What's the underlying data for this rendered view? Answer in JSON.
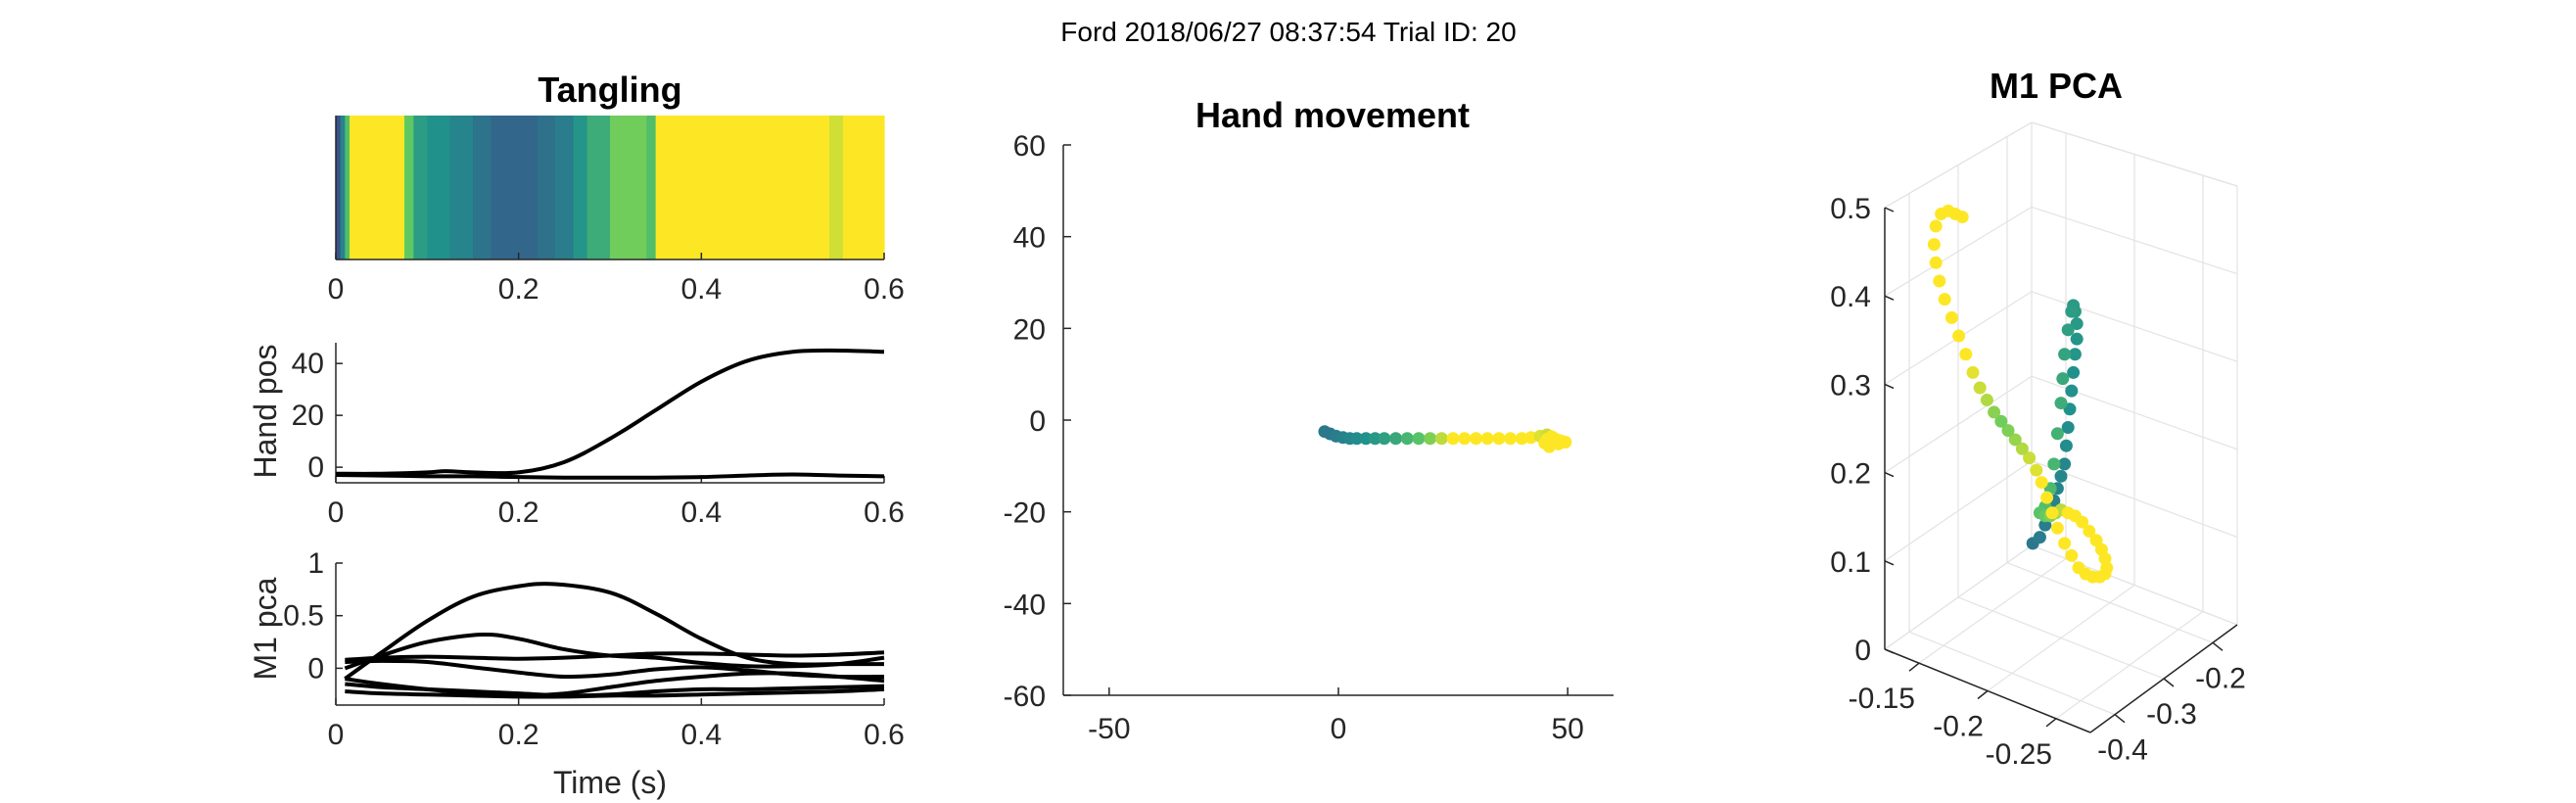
{
  "figure": {
    "suptitle": "Ford 2018/06/27 08:37:54 Trial ID: 20"
  },
  "colors": {
    "traces": "#000000",
    "viridis": [
      "#440154",
      "#3b528b",
      "#21918c",
      "#5ec962",
      "#fde725"
    ]
  },
  "chart_data": [
    {
      "type": "heatmap",
      "id": "tangling",
      "title": "Tangling",
      "xlim": [
        0,
        0.6
      ],
      "xticks": [
        "0",
        "0.2",
        "0.4",
        "0.6"
      ],
      "segments": [
        {
          "x0": 0.0,
          "x1": 0.005,
          "c": 0.25
        },
        {
          "x0": 0.005,
          "x1": 0.01,
          "c": 0.45
        },
        {
          "x0": 0.01,
          "x1": 0.015,
          "c": 0.7
        },
        {
          "x0": 0.015,
          "x1": 0.075,
          "c": 1.0
        },
        {
          "x0": 0.075,
          "x1": 0.085,
          "c": 0.75
        },
        {
          "x0": 0.085,
          "x1": 0.1,
          "c": 0.55
        },
        {
          "x0": 0.1,
          "x1": 0.125,
          "c": 0.5
        },
        {
          "x0": 0.125,
          "x1": 0.15,
          "c": 0.45
        },
        {
          "x0": 0.15,
          "x1": 0.17,
          "c": 0.38
        },
        {
          "x0": 0.17,
          "x1": 0.22,
          "c": 0.33
        },
        {
          "x0": 0.22,
          "x1": 0.24,
          "c": 0.37
        },
        {
          "x0": 0.24,
          "x1": 0.26,
          "c": 0.42
        },
        {
          "x0": 0.26,
          "x1": 0.275,
          "c": 0.52
        },
        {
          "x0": 0.275,
          "x1": 0.3,
          "c": 0.62
        },
        {
          "x0": 0.3,
          "x1": 0.34,
          "c": 0.78
        },
        {
          "x0": 0.34,
          "x1": 0.35,
          "c": 0.7
        },
        {
          "x0": 0.35,
          "x1": 0.54,
          "c": 1.0
        },
        {
          "x0": 0.54,
          "x1": 0.555,
          "c": 0.93
        },
        {
          "x0": 0.555,
          "x1": 0.6,
          "c": 1.0
        }
      ]
    },
    {
      "type": "line",
      "id": "hand-pos",
      "ylabel": "Hand pos",
      "xlim": [
        0,
        0.6
      ],
      "ylim": [
        -6,
        48
      ],
      "xticks": [
        "0",
        "0.2",
        "0.4",
        "0.6"
      ],
      "yticks": [
        "0",
        "20",
        "40"
      ],
      "series": [
        {
          "x": [
            0,
            0.05,
            0.1,
            0.12,
            0.15,
            0.2,
            0.25,
            0.3,
            0.35,
            0.4,
            0.45,
            0.5,
            0.55,
            0.6
          ],
          "y": [
            -2.5,
            -2.5,
            -2,
            -1.5,
            -2,
            -2,
            2,
            11,
            22,
            33,
            41,
            44.5,
            45,
            44.5
          ]
        },
        {
          "x": [
            0,
            0.05,
            0.1,
            0.15,
            0.2,
            0.25,
            0.3,
            0.35,
            0.4,
            0.45,
            0.5,
            0.55,
            0.6
          ],
          "y": [
            -3,
            -3.2,
            -3.5,
            -3.5,
            -3.8,
            -4,
            -4,
            -4,
            -3.8,
            -3.2,
            -2.8,
            -3.2,
            -3.5
          ]
        }
      ]
    },
    {
      "type": "line",
      "id": "m1-pca",
      "ylabel": "M1 pca",
      "xlabel": "Time (s)",
      "xlim": [
        0,
        0.6
      ],
      "ylim": [
        -0.35,
        1
      ],
      "xticks": [
        "0",
        "0.2",
        "0.4",
        "0.6"
      ],
      "yticks": [
        "0",
        "0.5",
        "1"
      ],
      "series": [
        {
          "x": [
            0.01,
            0.05,
            0.1,
            0.15,
            0.2,
            0.24,
            0.3,
            0.35,
            0.4,
            0.45,
            0.5,
            0.55,
            0.6
          ],
          "y": [
            -0.1,
            0.15,
            0.45,
            0.68,
            0.78,
            0.8,
            0.72,
            0.52,
            0.28,
            0.1,
            0.04,
            0.04,
            0.04
          ]
        },
        {
          "x": [
            0.01,
            0.05,
            0.1,
            0.16,
            0.2,
            0.25,
            0.3,
            0.35,
            0.4,
            0.45,
            0.5,
            0.55,
            0.6
          ],
          "y": [
            0.0,
            0.12,
            0.25,
            0.32,
            0.28,
            0.18,
            0.12,
            0.1,
            0.05,
            0.02,
            0.02,
            0.04,
            0.1
          ]
        },
        {
          "x": [
            0.01,
            0.05,
            0.1,
            0.15,
            0.2,
            0.25,
            0.3,
            0.35,
            0.4,
            0.45,
            0.5,
            0.55,
            0.6
          ],
          "y": [
            0.08,
            0.1,
            0.11,
            0.1,
            0.09,
            0.1,
            0.12,
            0.14,
            0.14,
            0.13,
            0.12,
            0.13,
            0.15
          ]
        },
        {
          "x": [
            0.01,
            0.05,
            0.1,
            0.15,
            0.2,
            0.25,
            0.3,
            0.35,
            0.4,
            0.45,
            0.5,
            0.55,
            0.6
          ],
          "y": [
            0.06,
            0.07,
            0.06,
            0.01,
            -0.04,
            -0.08,
            -0.06,
            -0.01,
            0.01,
            -0.02,
            -0.06,
            -0.08,
            -0.08
          ]
        },
        {
          "x": [
            0.01,
            0.05,
            0.1,
            0.15,
            0.2,
            0.25,
            0.3,
            0.35,
            0.4,
            0.45,
            0.5,
            0.55,
            0.6
          ],
          "y": [
            -0.1,
            -0.15,
            -0.2,
            -0.24,
            -0.26,
            -0.24,
            -0.18,
            -0.12,
            -0.08,
            -0.05,
            -0.05,
            -0.08,
            -0.12
          ]
        },
        {
          "x": [
            0.01,
            0.05,
            0.1,
            0.15,
            0.2,
            0.25,
            0.3,
            0.35,
            0.4,
            0.45,
            0.5,
            0.55,
            0.6
          ],
          "y": [
            -0.15,
            -0.18,
            -0.2,
            -0.22,
            -0.24,
            -0.26,
            -0.25,
            -0.22,
            -0.2,
            -0.2,
            -0.19,
            -0.18,
            -0.17
          ]
        },
        {
          "x": [
            0.01,
            0.05,
            0.1,
            0.15,
            0.2,
            0.25,
            0.3,
            0.35,
            0.4,
            0.45,
            0.5,
            0.55,
            0.6
          ],
          "y": [
            -0.22,
            -0.24,
            -0.25,
            -0.26,
            -0.27,
            -0.27,
            -0.26,
            -0.26,
            -0.25,
            -0.24,
            -0.23,
            -0.22,
            -0.2
          ]
        }
      ]
    },
    {
      "type": "scatter",
      "id": "hand-movement",
      "title": "Hand movement",
      "xlim": [
        -60,
        60
      ],
      "ylim": [
        -60,
        60
      ],
      "xticks": [
        "-50",
        "0",
        "50"
      ],
      "yticks": [
        "60",
        "40",
        "20",
        "0",
        "-20",
        "-40",
        "-60"
      ],
      "points": [
        {
          "x": -3.0,
          "y": -2.5,
          "c": 0.4
        },
        {
          "x": -1.8,
          "y": -3.0,
          "c": 0.4
        },
        {
          "x": -0.5,
          "y": -3.5,
          "c": 0.42
        },
        {
          "x": 1.0,
          "y": -3.8,
          "c": 0.44
        },
        {
          "x": 2.5,
          "y": -4.0,
          "c": 0.46
        },
        {
          "x": 4.0,
          "y": -4.0,
          "c": 0.48
        },
        {
          "x": 6.0,
          "y": -4.0,
          "c": 0.5
        },
        {
          "x": 8.0,
          "y": -4.0,
          "c": 0.53
        },
        {
          "x": 10.0,
          "y": -4.0,
          "c": 0.56
        },
        {
          "x": 12.5,
          "y": -4.0,
          "c": 0.6
        },
        {
          "x": 15.0,
          "y": -4.0,
          "c": 0.66
        },
        {
          "x": 17.5,
          "y": -4.0,
          "c": 0.72
        },
        {
          "x": 20.0,
          "y": -4.0,
          "c": 0.8
        },
        {
          "x": 22.5,
          "y": -4.0,
          "c": 0.9
        },
        {
          "x": 25.0,
          "y": -4.0,
          "c": 1.0
        },
        {
          "x": 27.5,
          "y": -4.0,
          "c": 1.0
        },
        {
          "x": 30.0,
          "y": -4.0,
          "c": 1.0
        },
        {
          "x": 32.5,
          "y": -4.0,
          "c": 1.0
        },
        {
          "x": 35.0,
          "y": -4.0,
          "c": 1.0
        },
        {
          "x": 37.5,
          "y": -4.0,
          "c": 1.0
        },
        {
          "x": 40.0,
          "y": -4.0,
          "c": 1.0
        },
        {
          "x": 42.0,
          "y": -3.8,
          "c": 1.0
        },
        {
          "x": 44.0,
          "y": -3.5,
          "c": 0.95
        },
        {
          "x": 45.5,
          "y": -3.2,
          "c": 0.92
        },
        {
          "x": 46.5,
          "y": -3.6,
          "c": 1.0
        },
        {
          "x": 47.5,
          "y": -4.2,
          "c": 1.0
        },
        {
          "x": 48.5,
          "y": -4.5,
          "c": 1.0
        },
        {
          "x": 49.5,
          "y": -4.8,
          "c": 1.0
        },
        {
          "x": 48.0,
          "y": -5.2,
          "c": 1.0
        },
        {
          "x": 46.0,
          "y": -5.5,
          "c": 1.0
        },
        {
          "x": 45.0,
          "y": -5.0,
          "c": 1.0
        },
        {
          "x": 45.5,
          "y": -4.2,
          "c": 1.0
        },
        {
          "x": 46.0,
          "y": -5.8,
          "c": 1.0
        }
      ]
    },
    {
      "type": "scatter",
      "id": "m1-pca-3d",
      "title": "M1 PCA",
      "zlim": [
        0,
        0.5
      ],
      "zticks": [
        "0.5",
        "0.4",
        "0.3",
        "0.2",
        "0.1",
        "0"
      ],
      "xticks": [
        "-0.2",
        "-0.3",
        "-0.4"
      ],
      "yticks": [
        "-0.15",
        "-0.2",
        "-0.25"
      ],
      "points": [
        {
          "u": 0.42,
          "v": 0.31,
          "c": 0.4
        },
        {
          "u": 0.44,
          "v": 0.32,
          "c": 0.42
        },
        {
          "u": 0.455,
          "v": 0.34,
          "c": 0.42
        },
        {
          "u": 0.47,
          "v": 0.36,
          "c": 0.43
        },
        {
          "u": 0.48,
          "v": 0.38,
          "c": 0.44
        },
        {
          "u": 0.49,
          "v": 0.4,
          "c": 0.45
        },
        {
          "u": 0.5,
          "v": 0.42,
          "c": 0.46
        },
        {
          "u": 0.51,
          "v": 0.44,
          "c": 0.46
        },
        {
          "u": 0.515,
          "v": 0.47,
          "c": 0.48
        },
        {
          "u": 0.52,
          "v": 0.5,
          "c": 0.48
        },
        {
          "u": 0.525,
          "v": 0.53,
          "c": 0.5
        },
        {
          "u": 0.53,
          "v": 0.56,
          "c": 0.5
        },
        {
          "u": 0.535,
          "v": 0.59,
          "c": 0.5
        },
        {
          "u": 0.54,
          "v": 0.62,
          "c": 0.52
        },
        {
          "u": 0.545,
          "v": 0.645,
          "c": 0.52
        },
        {
          "u": 0.545,
          "v": 0.67,
          "c": 0.53
        },
        {
          "u": 0.54,
          "v": 0.69,
          "c": 0.54
        },
        {
          "u": 0.535,
          "v": 0.7,
          "c": 0.54
        },
        {
          "u": 0.53,
          "v": 0.69,
          "c": 0.55
        },
        {
          "u": 0.52,
          "v": 0.66,
          "c": 0.56
        },
        {
          "u": 0.51,
          "v": 0.62,
          "c": 0.58
        },
        {
          "u": 0.505,
          "v": 0.58,
          "c": 0.6
        },
        {
          "u": 0.5,
          "v": 0.54,
          "c": 0.62
        },
        {
          "u": 0.49,
          "v": 0.49,
          "c": 0.64
        },
        {
          "u": 0.48,
          "v": 0.44,
          "c": 0.66
        },
        {
          "u": 0.47,
          "v": 0.4,
          "c": 0.68
        },
        {
          "u": 0.455,
          "v": 0.37,
          "c": 0.7
        },
        {
          "u": 0.44,
          "v": 0.36,
          "c": 0.72
        },
        {
          "u": 0.455,
          "v": 0.355,
          "c": 0.76
        },
        {
          "u": 0.47,
          "v": 0.355,
          "c": 0.8
        },
        {
          "u": 0.485,
          "v": 0.36,
          "c": 0.85
        },
        {
          "u": 0.5,
          "v": 0.365,
          "c": 0.9
        },
        {
          "u": 0.52,
          "v": 0.36,
          "c": 1.0
        },
        {
          "u": 0.54,
          "v": 0.355,
          "c": 1.0
        },
        {
          "u": 0.56,
          "v": 0.345,
          "c": 1.0
        },
        {
          "u": 0.58,
          "v": 0.33,
          "c": 1.0
        },
        {
          "u": 0.6,
          "v": 0.315,
          "c": 1.0
        },
        {
          "u": 0.615,
          "v": 0.3,
          "c": 1.0
        },
        {
          "u": 0.625,
          "v": 0.285,
          "c": 1.0
        },
        {
          "u": 0.63,
          "v": 0.27,
          "c": 1.0
        },
        {
          "u": 0.625,
          "v": 0.26,
          "c": 1.0
        },
        {
          "u": 0.61,
          "v": 0.255,
          "c": 1.0
        },
        {
          "u": 0.59,
          "v": 0.255,
          "c": 1.0
        },
        {
          "u": 0.57,
          "v": 0.26,
          "c": 1.0
        },
        {
          "u": 0.55,
          "v": 0.27,
          "c": 1.0
        },
        {
          "u": 0.53,
          "v": 0.29,
          "c": 1.0
        },
        {
          "u": 0.51,
          "v": 0.31,
          "c": 1.0
        },
        {
          "u": 0.49,
          "v": 0.335,
          "c": 1.0
        },
        {
          "u": 0.475,
          "v": 0.36,
          "c": 1.0
        },
        {
          "u": 0.46,
          "v": 0.385,
          "c": 1.0
        },
        {
          "u": 0.445,
          "v": 0.41,
          "c": 1.0
        },
        {
          "u": 0.43,
          "v": 0.43,
          "c": 0.95
        },
        {
          "u": 0.41,
          "v": 0.45,
          "c": 0.92
        },
        {
          "u": 0.39,
          "v": 0.465,
          "c": 0.88
        },
        {
          "u": 0.37,
          "v": 0.48,
          "c": 0.84
        },
        {
          "u": 0.35,
          "v": 0.495,
          "c": 0.8
        },
        {
          "u": 0.33,
          "v": 0.51,
          "c": 0.78
        },
        {
          "u": 0.31,
          "v": 0.525,
          "c": 0.82
        },
        {
          "u": 0.29,
          "v": 0.545,
          "c": 0.88
        },
        {
          "u": 0.27,
          "v": 0.565,
          "c": 0.92
        },
        {
          "u": 0.25,
          "v": 0.59,
          "c": 0.96
        },
        {
          "u": 0.23,
          "v": 0.62,
          "c": 1.0
        },
        {
          "u": 0.21,
          "v": 0.65,
          "c": 1.0
        },
        {
          "u": 0.19,
          "v": 0.68,
          "c": 1.0
        },
        {
          "u": 0.17,
          "v": 0.71,
          "c": 1.0
        },
        {
          "u": 0.155,
          "v": 0.74,
          "c": 1.0
        },
        {
          "u": 0.145,
          "v": 0.77,
          "c": 1.0
        },
        {
          "u": 0.14,
          "v": 0.8,
          "c": 1.0
        },
        {
          "u": 0.145,
          "v": 0.83,
          "c": 1.0
        },
        {
          "u": 0.16,
          "v": 0.85,
          "c": 1.0
        },
        {
          "u": 0.18,
          "v": 0.855,
          "c": 1.0
        },
        {
          "u": 0.2,
          "v": 0.85,
          "c": 1.0
        },
        {
          "u": 0.22,
          "v": 0.845,
          "c": 1.0
        }
      ]
    }
  ]
}
